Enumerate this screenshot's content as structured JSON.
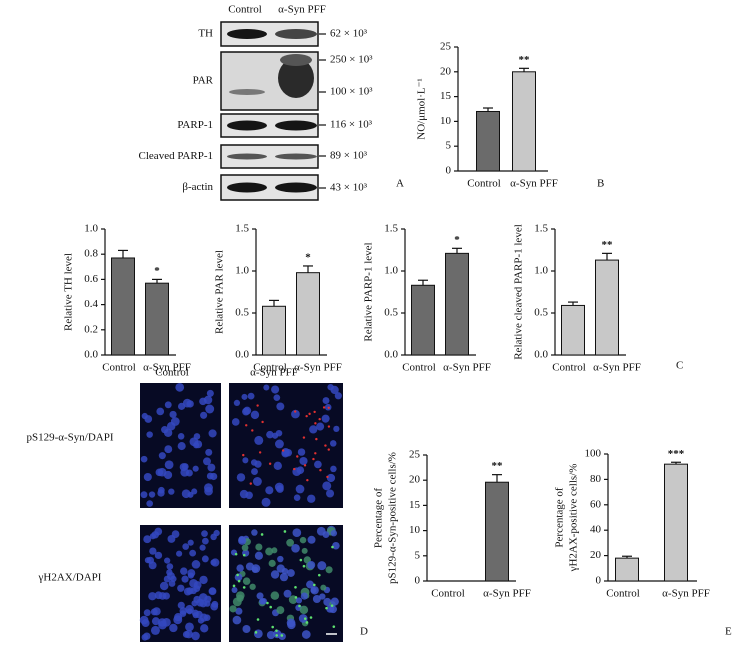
{
  "blot": {
    "columns": [
      "Control",
      "α-Syn PFF"
    ],
    "rows": [
      {
        "label": "TH",
        "markers": [
          "62 × 10³"
        ]
      },
      {
        "label": "PAR",
        "markers": [
          "250 × 10³",
          "100 × 10³"
        ]
      },
      {
        "label": "PARP-1",
        "markers": [
          "116 × 10³"
        ]
      },
      {
        "label": "Cleaved PARP-1",
        "markers": [
          "89 × 10³"
        ]
      },
      {
        "label": "β-actin",
        "markers": [
          "43 × 10³"
        ]
      }
    ],
    "panel_label": "A"
  },
  "chart_data": [
    {
      "type": "bar",
      "ylabel": [
        "NO/μmol·L⁻¹"
      ],
      "categories": [
        "Control",
        "α-Syn PFF"
      ],
      "values": [
        12,
        20
      ],
      "errors": [
        0.7,
        0.7
      ],
      "colors": [
        "#6b6b6b",
        "#c8c8c8"
      ],
      "significance": [
        null,
        "**"
      ],
      "ylim": [
        0,
        25
      ],
      "yticks": [
        0,
        5,
        10,
        15,
        20,
        25
      ],
      "panel_label": "B"
    },
    {
      "type": "bar",
      "ylabel": [
        "Relative TH level"
      ],
      "categories": [
        "Control",
        "α-Syn PFF"
      ],
      "values": [
        0.77,
        0.57
      ],
      "errors": [
        0.06,
        0.03
      ],
      "colors": [
        "#6b6b6b",
        "#6b6b6b"
      ],
      "significance": [
        null,
        "*"
      ],
      "ylim": [
        0,
        1
      ],
      "yticks": [
        {
          "value": 0,
          "label": "0.0"
        },
        0.2,
        0.4,
        0.6,
        0.8,
        {
          "value": 1,
          "label": "1.0"
        }
      ]
    },
    {
      "type": "bar",
      "ylabel": [
        "Relative PAR level"
      ],
      "categories": [
        "Control",
        "α-Syn PFF"
      ],
      "values": [
        0.58,
        0.98
      ],
      "errors": [
        0.07,
        0.08
      ],
      "colors": [
        "#c8c8c8",
        "#c8c8c8"
      ],
      "significance": [
        null,
        "*"
      ],
      "ylim": [
        0,
        1.5
      ],
      "yticks": [
        {
          "value": 0,
          "label": "0.0"
        },
        0.5,
        {
          "value": 1,
          "label": "1.0"
        },
        1.5
      ]
    },
    {
      "type": "bar",
      "ylabel": [
        "Relative PARP-1 level"
      ],
      "categories": [
        "Control",
        "α-Syn PFF"
      ],
      "values": [
        0.83,
        1.21
      ],
      "errors": [
        0.06,
        0.06
      ],
      "colors": [
        "#6b6b6b",
        "#6b6b6b"
      ],
      "significance": [
        null,
        "*"
      ],
      "ylim": [
        0,
        1.5
      ],
      "yticks": [
        {
          "value": 0,
          "label": "0.0"
        },
        0.5,
        {
          "value": 1,
          "label": "1.0"
        },
        1.5
      ]
    },
    {
      "type": "bar",
      "ylabel": [
        "Relative cleaved PARP-1 level"
      ],
      "categories": [
        "Control",
        "α-Syn PFF"
      ],
      "values": [
        0.59,
        1.13
      ],
      "errors": [
        0.04,
        0.08
      ],
      "colors": [
        "#c8c8c8",
        "#c8c8c8"
      ],
      "significance": [
        null,
        "**"
      ],
      "ylim": [
        0,
        1.5
      ],
      "yticks": [
        {
          "value": 0,
          "label": "0.0"
        },
        0.5,
        {
          "value": 1,
          "label": "1.0"
        },
        1.5
      ],
      "panel_label": "C"
    },
    {
      "type": "bar",
      "ylabel": [
        "Percentage of",
        "pS129-α-Syn-positive cells/%"
      ],
      "categories": [
        "Control",
        "α-Syn PFF"
      ],
      "values": [
        0,
        19.6
      ],
      "errors": [
        null,
        1.5
      ],
      "colors": [
        "#6b6b6b",
        "#6b6b6b"
      ],
      "significance": [
        null,
        "**"
      ],
      "ylim": [
        0,
        25
      ],
      "yticks": [
        0,
        5,
        10,
        15,
        20,
        25
      ]
    },
    {
      "type": "bar",
      "ylabel": [
        "Percentage of",
        "γH2AX-positive cells/%"
      ],
      "categories": [
        "Control",
        "α-Syn PFF"
      ],
      "values": [
        18,
        92
      ],
      "errors": [
        1.5,
        1.5
      ],
      "colors": [
        "#c8c8c8",
        "#c8c8c8"
      ],
      "significance": [
        null,
        "***"
      ],
      "ylim": [
        0,
        100
      ],
      "yticks": [
        0,
        20,
        40,
        60,
        80,
        100
      ],
      "panel_label": "E"
    }
  ],
  "micrographs": {
    "columns": [
      "Control",
      "α-Syn PFF"
    ],
    "rows": [
      "pS129-α-Syn/DAPI",
      "γH2AX/DAPI"
    ],
    "panel_label": "D"
  }
}
